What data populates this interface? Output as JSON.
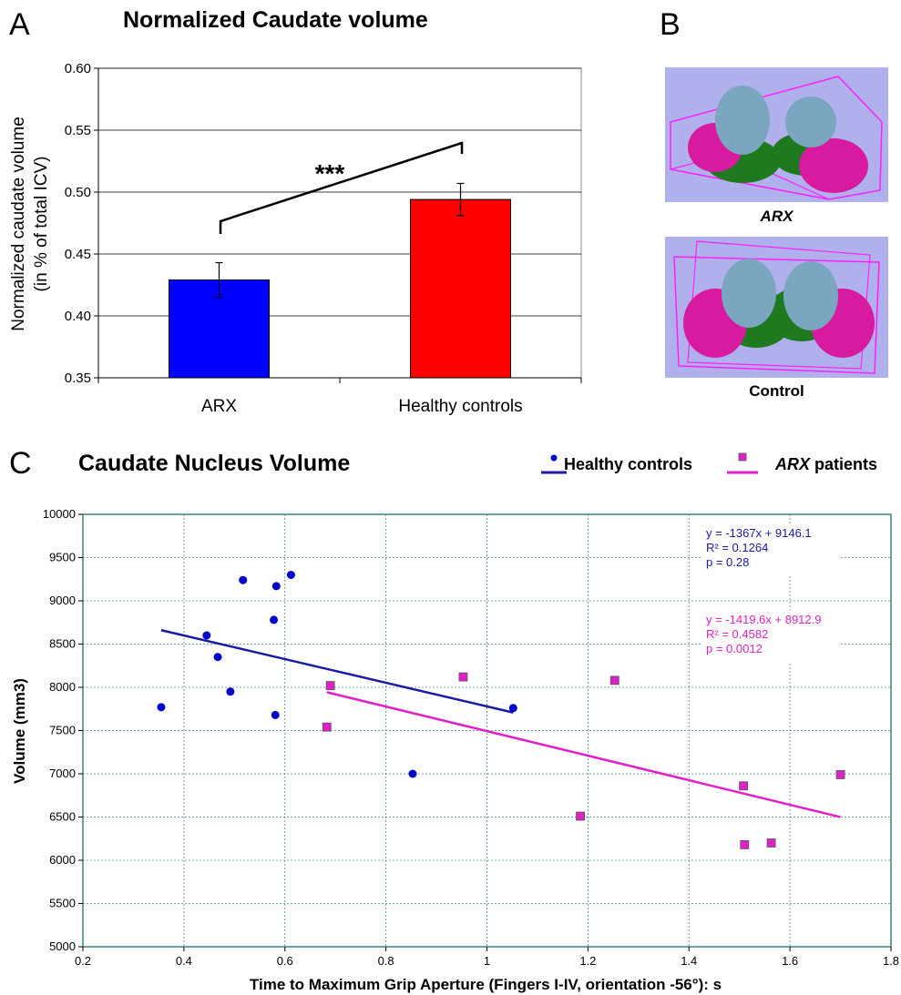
{
  "panels": {
    "a": "A",
    "b": "B",
    "c": "C"
  },
  "panel_b": {
    "arx_label": "ARX",
    "control_label": "Control"
  },
  "colors": {
    "blue": "#0000ff",
    "red": "#ff0000",
    "navy": "#1a1aa6",
    "magenta": "#e020c8",
    "grid": "#4a8a8a",
    "brain_bg": "#b0b0ec"
  },
  "chart_data": [
    {
      "type": "bar",
      "title": "Normalized Caudate volume",
      "ylabel_line1": "Normalized caudate volume",
      "ylabel_line2": "(in % of total ICV)",
      "categories": [
        "ARX",
        "Healthy controls"
      ],
      "values": [
        0.429,
        0.494
      ],
      "errors": [
        0.014,
        0.013
      ],
      "bar_colors": [
        "#0000ff",
        "#ff0000"
      ],
      "ylim": [
        0.35,
        0.6
      ],
      "yticks": [
        "0.35",
        "0.40",
        "0.45",
        "0.50",
        "0.55",
        "0.60"
      ],
      "significance": "***",
      "grid": true
    },
    {
      "type": "scatter",
      "title": "Caudate Nucleus Volume",
      "xlabel": "Time to Maximum Grip Aperture (Fingers I-IV, orientation -56°): s",
      "ylabel": "Volume  (mm3)",
      "xlim": [
        0.2,
        1.8
      ],
      "ylim": [
        5000,
        10000
      ],
      "xticks": [
        "0.2",
        "0.4",
        "0.6",
        "0.8",
        "1",
        "1.2",
        "1.4",
        "1.6",
        "1.8"
      ],
      "yticks": [
        "5000",
        "5500",
        "6000",
        "6500",
        "7000",
        "7500",
        "8000",
        "8500",
        "9000",
        "9500",
        "10000"
      ],
      "grid": true,
      "legend": {
        "placement": "top-right",
        "healthy": "Healthy controls",
        "arx": "ARX",
        "arx_suffix": " patients"
      },
      "series": [
        {
          "name": "Healthy controls",
          "marker": "circle",
          "color": "#0000cc",
          "points": [
            [
              0.355,
              7770
            ],
            [
              0.445,
              8600
            ],
            [
              0.467,
              8350
            ],
            [
              0.492,
              7950
            ],
            [
              0.517,
              9240
            ],
            [
              0.578,
              8780
            ],
            [
              0.581,
              7680
            ],
            [
              0.583,
              9170
            ],
            [
              0.612,
              9300
            ],
            [
              0.853,
              7000
            ],
            [
              1.052,
              7760
            ]
          ],
          "fit": {
            "x": [
              0.355,
              1.052
            ],
            "slope": -1367,
            "intercept": 9146.1
          },
          "stats": [
            "y = -1367x + 9146.1",
            "R² = 0.1264",
            "p = 0.28"
          ]
        },
        {
          "name": "ARX patients",
          "marker": "square",
          "color": "#e020c8",
          "points": [
            [
              0.683,
              7540
            ],
            [
              0.69,
              8020
            ],
            [
              0.953,
              8120
            ],
            [
              1.185,
              6510
            ],
            [
              1.253,
              8080
            ],
            [
              1.508,
              6860
            ],
            [
              1.51,
              6180
            ],
            [
              1.563,
              6200
            ],
            [
              1.7,
              6990
            ]
          ],
          "fit": {
            "x": [
              0.683,
              1.7
            ],
            "slope": -1419.6,
            "intercept": 8912.9
          },
          "stats": [
            "y = -1419.6x + 8912.9",
            "R² = 0.4582",
            "p = 0.0012"
          ]
        }
      ]
    }
  ]
}
